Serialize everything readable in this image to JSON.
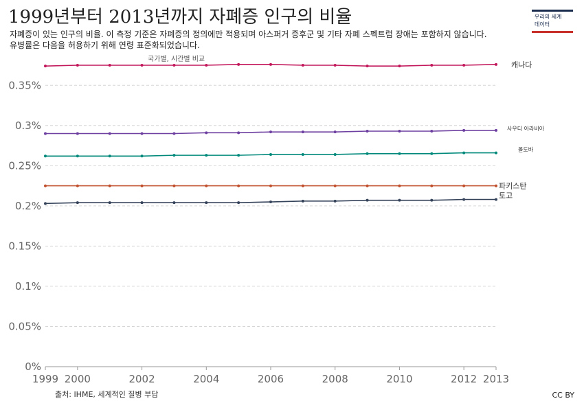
{
  "title": "1999년부터 2013년까지 자폐증 인구의 비율",
  "subtitle": "자폐증이 있는 인구의 비율. 이 측정 기준은 자폐증의 정의에만 적용되며 아스퍼거 증후군 및 기타 자폐 스펙트럼 장애는 포함하지 않습니다. 유병률은 다음을 허용하기 위해 연령 표준화되었습니다.",
  "controls_label": "국가별, 시간별 비교",
  "logo": {
    "line1": "우리의 세계",
    "line2": "데이터"
  },
  "source": "출처: IHME, 세계적인 질병 부담",
  "license": "CC BY",
  "chart_data": {
    "type": "line",
    "x": [
      1999,
      2000,
      2001,
      2002,
      2003,
      2004,
      2005,
      2006,
      2007,
      2008,
      2009,
      2010,
      2011,
      2012,
      2013
    ],
    "xticks": [
      "1999",
      "2000",
      "2002",
      "2004",
      "2006",
      "2008",
      "2010",
      "2012",
      "2013"
    ],
    "xtick_values": [
      1999,
      2000,
      2002,
      2004,
      2006,
      2008,
      2010,
      2012,
      2013
    ],
    "yticks": [
      "0%",
      "0.05%",
      "0.1%",
      "0.15%",
      "0.2%",
      "0.25%",
      "0.3%",
      "0.35%"
    ],
    "ytick_values": [
      0,
      0.05,
      0.1,
      0.15,
      0.2,
      0.25,
      0.3,
      0.35
    ],
    "xlim": [
      1999,
      2013
    ],
    "ylim": [
      0,
      0.375
    ],
    "grid": true,
    "legend": "right-end labels",
    "series": [
      {
        "name": "캐나다",
        "color": "#c2185b",
        "values": [
          0.374,
          0.375,
          0.375,
          0.375,
          0.375,
          0.375,
          0.376,
          0.376,
          0.375,
          0.375,
          0.374,
          0.374,
          0.375,
          0.375,
          0.376
        ]
      },
      {
        "name": "사우디 아라비아",
        "color": "#6d3fa0",
        "values": [
          0.29,
          0.29,
          0.29,
          0.29,
          0.29,
          0.291,
          0.291,
          0.292,
          0.292,
          0.292,
          0.293,
          0.293,
          0.293,
          0.294,
          0.294
        ]
      },
      {
        "name": "몰도바",
        "color": "#00897b",
        "values": [
          0.262,
          0.262,
          0.262,
          0.262,
          0.263,
          0.263,
          0.263,
          0.264,
          0.264,
          0.264,
          0.265,
          0.265,
          0.265,
          0.266,
          0.266
        ]
      },
      {
        "name": "파키스탄",
        "color": "#c0502e",
        "values": [
          0.225,
          0.225,
          0.225,
          0.225,
          0.225,
          0.225,
          0.225,
          0.225,
          0.225,
          0.225,
          0.225,
          0.225,
          0.225,
          0.225,
          0.225
        ]
      },
      {
        "name": "토고",
        "color": "#34425a",
        "values": [
          0.203,
          0.204,
          0.204,
          0.204,
          0.204,
          0.204,
          0.204,
          0.205,
          0.206,
          0.206,
          0.207,
          0.207,
          0.207,
          0.208,
          0.208
        ]
      }
    ]
  }
}
